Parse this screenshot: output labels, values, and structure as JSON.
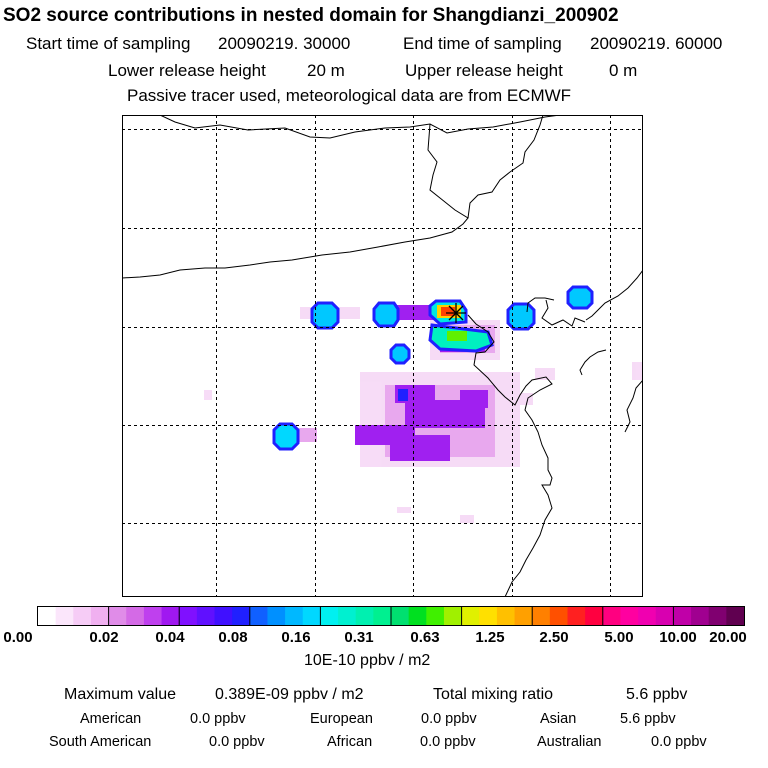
{
  "header": {
    "title": "SO2 source contributions in nested domain for Shangdianzi_200902",
    "start_label": "Start time of sampling",
    "start_value": "20090219. 30000",
    "end_label": "End time of sampling",
    "end_value": "20090219. 60000",
    "lower_label": "Lower release height",
    "lower_value": "20 m",
    "upper_label": "Upper release height",
    "upper_value": "0 m",
    "note": "Passive tracer used, meteorological data are from ECMWF"
  },
  "map": {
    "station_marker": "asterisk-star-marker",
    "colors": {
      "border": "#000000",
      "grid": "#000000"
    }
  },
  "colorbar": {
    "tick_labels": [
      "0.00",
      "0.02",
      "0.04",
      "0.08",
      "0.16",
      "0.31",
      "0.63",
      "1.25",
      "2.50",
      "5.00",
      "10.00",
      "20.00"
    ],
    "colors": [
      "#ffffff",
      "#fbe6fb",
      "#f6ccf6",
      "#f0b0f0",
      "#e08ce8",
      "#d46ae6",
      "#bf40ee",
      "#a018f0",
      "#8010ff",
      "#6010ff",
      "#4010ff",
      "#2020ff",
      "#1060ff",
      "#0090ff",
      "#00b8ff",
      "#00d8ff",
      "#00f0f0",
      "#00f0d0",
      "#00f0b0",
      "#00f090",
      "#00e070",
      "#00e020",
      "#40f000",
      "#a0f000",
      "#e0f000",
      "#ffe000",
      "#ffc000",
      "#ffa000",
      "#ff8000",
      "#ff5000",
      "#ff2020",
      "#ff0040",
      "#ff0080",
      "#ff00a0",
      "#f000b0",
      "#d800b0",
      "#c000a8",
      "#a00090",
      "#800070",
      "#600050"
    ],
    "units": "10E-10 ppbv / m2"
  },
  "stats": {
    "max_label": "Maximum value",
    "max_value": "0.389E-09 ppbv / m2",
    "total_label": "Total mixing ratio",
    "total_value": "5.6 ppbv",
    "regions": [
      {
        "name": "American",
        "value": "0.0 ppbv"
      },
      {
        "name": "European",
        "value": "0.0 ppbv"
      },
      {
        "name": "Asian",
        "value": "5.6 ppbv"
      },
      {
        "name": "South American",
        "value": "0.0 ppbv"
      },
      {
        "name": "African",
        "value": "0.0 ppbv"
      },
      {
        "name": "Australian",
        "value": "0.0 ppbv"
      }
    ]
  }
}
